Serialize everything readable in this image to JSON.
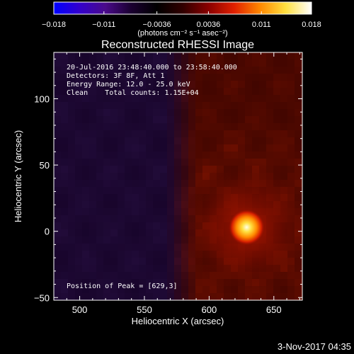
{
  "chart_data": {
    "type": "heatmap",
    "title": "Reconstructed RHESSI Image",
    "xlabel": "Heliocentric X (arcsec)",
    "ylabel": "Heliocentric Y (arcsec)",
    "xlim": [
      480,
      672
    ],
    "ylim": [
      -52,
      135
    ],
    "xticks": [
      500,
      550,
      600,
      650
    ],
    "xtick_labels": [
      "500",
      "550",
      "600",
      "650"
    ],
    "yticks": [
      -50,
      0,
      50,
      100
    ],
    "ytick_labels": [
      "−50",
      "0",
      "50",
      "100"
    ],
    "colorbar": {
      "min": -0.018,
      "max": 0.018,
      "tick_values": [
        -0.018,
        -0.011,
        -0.0036,
        0.0036,
        0.011,
        0.018
      ],
      "tick_labels": [
        "−0.018",
        "−0.011",
        "−0.0036",
        "0.0036",
        "0.011",
        "0.018"
      ],
      "unit_label": "(photons cm⁻² s⁻¹ asec⁻²)",
      "colors": [
        "#0000ff",
        "#3300cc",
        "#4a0a8a",
        "#1a0030",
        "#000000",
        "#300000",
        "#8a0000",
        "#e02000",
        "#ff8800",
        "#ffe040",
        "#ffffff"
      ]
    },
    "annotations": [
      "20-Jul-2016 23:48:40.000 to 23:58:40.000",
      "Detectors: 3F 8F, Att 1",
      "Energy Range: 12.0 - 25.0 keV",
      "Clean    Total counts: 1.15E+04"
    ],
    "peak_label": "Position of Peak = [629,3]",
    "peak": {
      "x": 629,
      "y": 3
    },
    "background_colors": {
      "left": "#220c3a",
      "left_dark": "#120022",
      "right": "#3a0400",
      "right_bright": "#7a1200"
    }
  },
  "footer_timestamp": "3-Nov-2017 04:35"
}
